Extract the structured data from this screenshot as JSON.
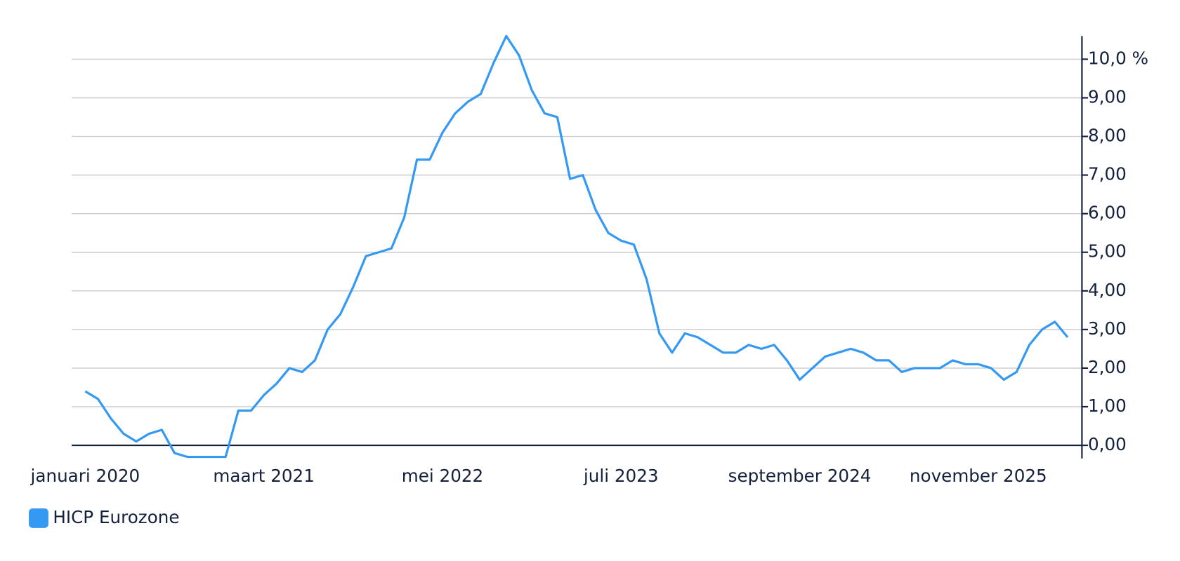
{
  "chart_data": {
    "type": "line",
    "categories": [
      "januari 2020",
      null,
      null,
      null,
      null,
      null,
      null,
      null,
      null,
      null,
      null,
      null,
      null,
      null,
      "maart 2021",
      null,
      null,
      null,
      null,
      null,
      null,
      null,
      null,
      null,
      null,
      null,
      null,
      null,
      "mei 2022",
      null,
      null,
      null,
      null,
      null,
      null,
      null,
      null,
      null,
      null,
      null,
      null,
      null,
      "juli 2023",
      null,
      null,
      null,
      null,
      null,
      null,
      null,
      null,
      null,
      null,
      null,
      null,
      null,
      "september 2024",
      null,
      null,
      null,
      null,
      null,
      null,
      null,
      null,
      null,
      null,
      null,
      null,
      null,
      "november 2025",
      null,
      null,
      null,
      null,
      null,
      null,
      null
    ],
    "series": [
      {
        "name": "HICP Eurozone",
        "color": "#3399f3",
        "values": [
          1.4,
          1.2,
          0.7,
          0.3,
          0.1,
          0.3,
          0.4,
          -0.2,
          -0.3,
          -0.3,
          -0.3,
          -0.3,
          0.9,
          0.9,
          1.3,
          1.6,
          2.0,
          1.9,
          2.2,
          3.0,
          3.4,
          4.1,
          4.9,
          5.0,
          5.1,
          5.9,
          7.4,
          7.4,
          8.1,
          8.6,
          8.9,
          9.1,
          9.9,
          10.6,
          10.1,
          9.2,
          8.6,
          8.5,
          6.9,
          7.0,
          6.1,
          5.5,
          5.3,
          5.2,
          4.3,
          2.9,
          2.4,
          2.9,
          2.8,
          2.6,
          2.4,
          2.4,
          2.6,
          2.5,
          2.6,
          2.2,
          1.7,
          2.0,
          2.3,
          2.4,
          2.5,
          2.4,
          2.2,
          2.2,
          1.9,
          2.0,
          2.0,
          2.0,
          2.2,
          2.1,
          2.1,
          2.0,
          1.7,
          1.9,
          2.6,
          3.0,
          3.2,
          2.8
        ]
      }
    ],
    "ylim": [
      -0.3,
      10.6
    ],
    "yticks": [
      {
        "value": 0,
        "label": "0,00"
      },
      {
        "value": 1,
        "label": "1,00"
      },
      {
        "value": 2,
        "label": "2,00"
      },
      {
        "value": 3,
        "label": "3,00"
      },
      {
        "value": 4,
        "label": "4,00"
      },
      {
        "value": 5,
        "label": "5,00"
      },
      {
        "value": 6,
        "label": "6,00"
      },
      {
        "value": 7,
        "label": "7,00"
      },
      {
        "value": 8,
        "label": "8,00"
      },
      {
        "value": 9,
        "label": "9,00"
      },
      {
        "value": 10,
        "label": "10,0 %"
      }
    ],
    "y_axis_side": "right",
    "grid": true,
    "legend": "bottom-left"
  }
}
